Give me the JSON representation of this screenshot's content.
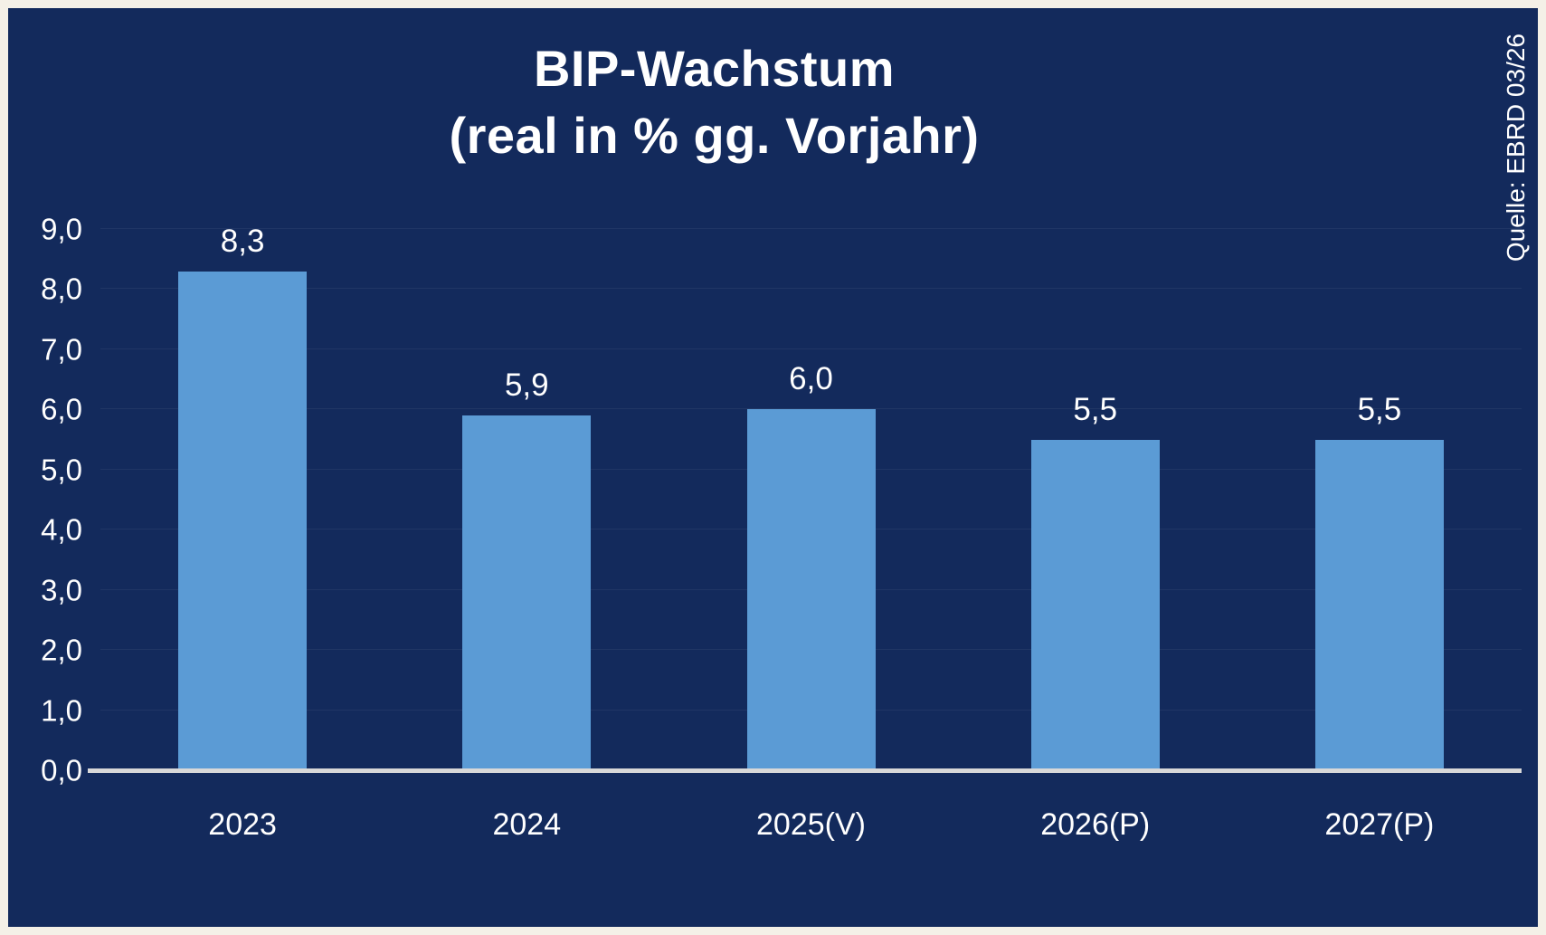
{
  "title": {
    "line1": "BIP-Wachstum",
    "line2": "(real in % gg. Vorjahr)"
  },
  "source": "Quelle: EBRD 03/26",
  "colors": {
    "background": "#132a5c",
    "frame": "#f4f0e7",
    "bar": "#5b9bd5",
    "axis": "#d8d8d8",
    "text": "#ffffff"
  },
  "chart_data": {
    "type": "bar",
    "title": "BIP-Wachstum (real in % gg. Vorjahr)",
    "categories": [
      "2023",
      "2024",
      "2025(V)",
      "2026(P)",
      "2027(P)"
    ],
    "values": [
      8.3,
      5.9,
      6.0,
      5.5,
      5.5
    ],
    "value_labels": [
      "8,3",
      "5,9",
      "6,0",
      "5,5",
      "5,5"
    ],
    "xlabel": "",
    "ylabel": "",
    "ylim": [
      0,
      9
    ],
    "ytick_step": 1,
    "ytick_labels": [
      "0,0",
      "1,0",
      "2,0",
      "3,0",
      "4,0",
      "5,0",
      "6,0",
      "7,0",
      "8,0",
      "9,0"
    ],
    "grid": "faint-horizontal",
    "legend": "none"
  }
}
